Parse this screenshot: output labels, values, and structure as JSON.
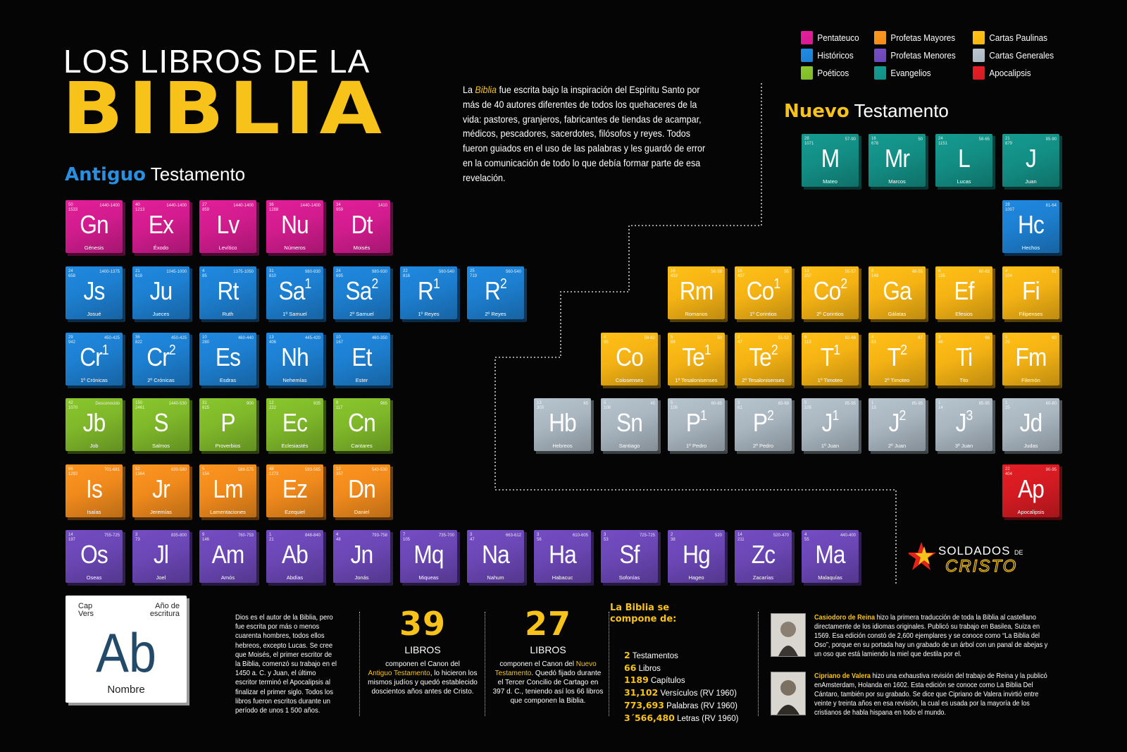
{
  "title": {
    "line1": "LOS LIBROS DE LA",
    "line2": "BIBLIA"
  },
  "old_testament": {
    "bold": "Antiguo",
    "rest": " Testamento"
  },
  "new_testament": {
    "bold": "Nuevo",
    "rest": " Testamento"
  },
  "intro": {
    "prefix": "La ",
    "highlight": "Biblia",
    "body": " fue escrita bajo la inspiración del Espíritu Santo por más de 40 autores diferentes de todos los quehaceres de la vida: pastores, granjeros, fabricantes de tiendas de acampar, médicos, pescadores, sacerdotes, filósofos y reyes.  Todos fueron guiados en el uso de las palabras y les guardó de error en la comunicación de todo lo que debía formar parte de esa revelación."
  },
  "legend": [
    {
      "label": "Pentateuco",
      "color": "#d21c8e"
    },
    {
      "label": "Profetas Mayores",
      "color": "#f08a1c"
    },
    {
      "label": "Cartas Paulinas",
      "color": "#f5b314"
    },
    {
      "label": "Históricos",
      "color": "#1d7fd0"
    },
    {
      "label": "Profetas Menores",
      "color": "#6b47b5"
    },
    {
      "label": "Cartas Generales",
      "color": "#a9b6c0"
    },
    {
      "label": "Poéticos",
      "color": "#7fb82a"
    },
    {
      "label": "Evangelios",
      "color": "#138f85"
    },
    {
      "label": "Apocalipsis",
      "color": "#d41b22"
    }
  ],
  "colors": {
    "pentateuco": "#d21c8e",
    "historicos": "#1d7fd0",
    "poeticos": "#7fb82a",
    "mayores": "#f08a1c",
    "menores": "#6b47b5",
    "evangelios": "#138f85",
    "paulinas": "#f5b314",
    "generales": "#a9b6c0",
    "apocalipsis": "#d41b22"
  },
  "books": [
    {
      "sym": "Gn",
      "sup": "",
      "name": "Génesis",
      "cap": "50",
      "vers": "1533",
      "year": "1440-1400",
      "cat": "pentateuco"
    },
    {
      "sym": "Ex",
      "sup": "",
      "name": "Éxodo",
      "cap": "40",
      "vers": "1213",
      "year": "1440-1400",
      "cat": "pentateuco"
    },
    {
      "sym": "Lv",
      "sup": "",
      "name": "Levítico",
      "cap": "27",
      "vers": "859",
      "year": "1440-1400",
      "cat": "pentateuco"
    },
    {
      "sym": "Nu",
      "sup": "",
      "name": "Números",
      "cap": "36",
      "vers": "1288",
      "year": "1440-1400",
      "cat": "pentateuco"
    },
    {
      "sym": "Dt",
      "sup": "",
      "name": "Moisés",
      "cap": "34",
      "vers": "959",
      "year": "1410",
      "cat": "pentateuco"
    },
    {
      "sym": "Js",
      "sup": "",
      "name": "Josué",
      "cap": "24",
      "vers": "658",
      "year": "1400-1375",
      "cat": "historicos"
    },
    {
      "sym": "Ju",
      "sup": "",
      "name": "Jueces",
      "cap": "21",
      "vers": "618",
      "year": "1045-1000",
      "cat": "historicos"
    },
    {
      "sym": "Rt",
      "sup": "",
      "name": "Ruth",
      "cap": "4",
      "vers": "85",
      "year": "1375-1050",
      "cat": "historicos"
    },
    {
      "sym": "Sa",
      "sup": "1",
      "name": "1º Samuel",
      "cap": "31",
      "vers": "810",
      "year": "980-930",
      "cat": "historicos"
    },
    {
      "sym": "Sa",
      "sup": "2",
      "name": "2º Samuel",
      "cap": "24",
      "vers": "695",
      "year": "980-930",
      "cat": "historicos"
    },
    {
      "sym": "R",
      "sup": "1",
      "name": "1º Reyes",
      "cap": "22",
      "vers": "816",
      "year": "560-540",
      "cat": "historicos"
    },
    {
      "sym": "R",
      "sup": "2",
      "name": "2º Reyes",
      "cap": "25",
      "vers": "719",
      "year": "560-540",
      "cat": "historicos"
    },
    {
      "sym": "Cr",
      "sup": "1",
      "name": "1º Crónicas",
      "cap": "29",
      "vers": "942",
      "year": "450-425",
      "cat": "historicos"
    },
    {
      "sym": "Cr",
      "sup": "2",
      "name": "2º Crónicas",
      "cap": "36",
      "vers": "822",
      "year": "450-425",
      "cat": "historicos"
    },
    {
      "sym": "Es",
      "sup": "",
      "name": "Esdras",
      "cap": "10",
      "vers": "280",
      "year": "460-440",
      "cat": "historicos"
    },
    {
      "sym": "Nh",
      "sup": "",
      "name": "Nehemías",
      "cap": "13",
      "vers": "406",
      "year": "445-420",
      "cat": "historicos"
    },
    {
      "sym": "Et",
      "sup": "",
      "name": "Ester",
      "cap": "10",
      "vers": "167",
      "year": "460-350",
      "cat": "historicos"
    },
    {
      "sym": "Jb",
      "sup": "",
      "name": "Job",
      "cap": "42",
      "vers": "1070",
      "year": "Desconocido",
      "cat": "poeticos"
    },
    {
      "sym": "S",
      "sup": "",
      "name": "Salmos",
      "cap": "150",
      "vers": "2461",
      "year": "1440-530",
      "cat": "poeticos"
    },
    {
      "sym": "P",
      "sup": "",
      "name": "Proverbios",
      "cap": "31",
      "vers": "915",
      "year": "900",
      "cat": "poeticos"
    },
    {
      "sym": "Ec",
      "sup": "",
      "name": "Eclesiastés",
      "cap": "12",
      "vers": "222",
      "year": "935",
      "cat": "poeticos"
    },
    {
      "sym": "Cn",
      "sup": "",
      "name": "Cantares",
      "cap": "8",
      "vers": "117",
      "year": "965",
      "cat": "poeticos"
    },
    {
      "sym": "Is",
      "sup": "",
      "name": "Isaías",
      "cap": "66",
      "vers": "1292",
      "year": "701-681",
      "cat": "mayores"
    },
    {
      "sym": "Jr",
      "sup": "",
      "name": "Jeremías",
      "cap": "52",
      "vers": "1364",
      "year": "630-580",
      "cat": "mayores"
    },
    {
      "sym": "Lm",
      "sup": "",
      "name": "Lamentaciones",
      "cap": "5",
      "vers": "154",
      "year": "586-575",
      "cat": "mayores"
    },
    {
      "sym": "Ez",
      "sup": "",
      "name": "Ezequiel",
      "cap": "48",
      "vers": "1273",
      "year": "593-565",
      "cat": "mayores"
    },
    {
      "sym": "Dn",
      "sup": "",
      "name": "Daniel",
      "cap": "12",
      "vers": "357",
      "year": "540-530",
      "cat": "mayores"
    },
    {
      "sym": "Os",
      "sup": "",
      "name": "Oseas",
      "cap": "14",
      "vers": "197",
      "year": "755-725",
      "cat": "menores"
    },
    {
      "sym": "Jl",
      "sup": "",
      "name": "Joel",
      "cap": "3",
      "vers": "73",
      "year": "835-800",
      "cat": "menores"
    },
    {
      "sym": "Am",
      "sup": "",
      "name": "Amós",
      "cap": "9",
      "vers": "146",
      "year": "760-753",
      "cat": "menores"
    },
    {
      "sym": "Ab",
      "sup": "",
      "name": "Abdías",
      "cap": "1",
      "vers": "21",
      "year": "848-840",
      "cat": "menores"
    },
    {
      "sym": "Jn",
      "sup": "",
      "name": "Jonás",
      "cap": "4",
      "vers": "48",
      "year": "793-758",
      "cat": "menores"
    },
    {
      "sym": "Mq",
      "sup": "",
      "name": "Miqueas",
      "cap": "7",
      "vers": "105",
      "year": "735-700",
      "cat": "menores"
    },
    {
      "sym": "Na",
      "sup": "",
      "name": "Nahum",
      "cap": "3",
      "vers": "47",
      "year": "663-612",
      "cat": "menores"
    },
    {
      "sym": "Ha",
      "sup": "",
      "name": "Habacuc",
      "cap": "3",
      "vers": "56",
      "year": "610-605",
      "cat": "menores"
    },
    {
      "sym": "Sf",
      "sup": "",
      "name": "Sofonías",
      "cap": "3",
      "vers": "53",
      "year": "725-725",
      "cat": "menores"
    },
    {
      "sym": "Hg",
      "sup": "",
      "name": "Hageo",
      "cap": "2",
      "vers": "38",
      "year": "520",
      "cat": "menores"
    },
    {
      "sym": "Zc",
      "sup": "",
      "name": "Zacarías",
      "cap": "14",
      "vers": "211",
      "year": "520-470",
      "cat": "menores"
    },
    {
      "sym": "Ma",
      "sup": "",
      "name": "Malaquías",
      "cap": "4",
      "vers": "55",
      "year": "440-400",
      "cat": "menores"
    },
    {
      "sym": "M",
      "sup": "",
      "name": "Mateo",
      "cap": "28",
      "vers": "1071",
      "year": "57-90",
      "cat": "evangelios"
    },
    {
      "sym": "Mr",
      "sup": "",
      "name": "Marcos",
      "cap": "16",
      "vers": "678",
      "year": "50",
      "cat": "evangelios"
    },
    {
      "sym": "L",
      "sup": "",
      "name": "Lucas",
      "cap": "24",
      "vers": "1151",
      "year": "58-65",
      "cat": "evangelios"
    },
    {
      "sym": "J",
      "sup": "",
      "name": "Juan",
      "cap": "21",
      "vers": "879",
      "year": "85-90",
      "cat": "evangelios"
    },
    {
      "sym": "Hc",
      "sup": "",
      "name": "Hechos",
      "cap": "28",
      "vers": "1007",
      "year": "61-64",
      "cat": "historicos"
    },
    {
      "sym": "Rm",
      "sup": "",
      "name": "Romanos",
      "cap": "16",
      "vers": "433",
      "year": "56-58",
      "cat": "paulinas"
    },
    {
      "sym": "Co",
      "sup": "1",
      "name": "1º Corintios",
      "cap": "16",
      "vers": "437",
      "year": "55",
      "cat": "paulinas"
    },
    {
      "sym": "Co",
      "sup": "2",
      "name": "2º Corintios",
      "cap": "13",
      "vers": "257",
      "year": "55-57",
      "cat": "paulinas"
    },
    {
      "sym": "Ga",
      "sup": "",
      "name": "Gálatas",
      "cap": "6",
      "vers": "149",
      "year": "48-55",
      "cat": "paulinas"
    },
    {
      "sym": "Ef",
      "sup": "",
      "name": "Efesios",
      "cap": "6",
      "vers": "155",
      "year": "60-63",
      "cat": "paulinas"
    },
    {
      "sym": "Fi",
      "sup": "",
      "name": "Filipenses",
      "cap": "4",
      "vers": "104",
      "year": "61",
      "cat": "paulinas"
    },
    {
      "sym": "Co",
      "sup": "",
      "name": "Colosenses",
      "cap": "4",
      "vers": "95",
      "year": "58-62",
      "cat": "paulinas"
    },
    {
      "sym": "Te",
      "sup": "1",
      "name": "1º Tesalonisenses",
      "cap": "5",
      "vers": "89",
      "year": "50",
      "cat": "paulinas"
    },
    {
      "sym": "Te",
      "sup": "2",
      "name": "2º Tesalonisenses",
      "cap": "3",
      "vers": "47",
      "year": "51-52",
      "cat": "paulinas"
    },
    {
      "sym": "T",
      "sup": "1",
      "name": "1º Timoteo",
      "cap": "6",
      "vers": "113",
      "year": "62-66",
      "cat": "paulinas"
    },
    {
      "sym": "T",
      "sup": "2",
      "name": "2º Timoteo",
      "cap": "4",
      "vers": "83",
      "year": "67",
      "cat": "paulinas"
    },
    {
      "sym": "Ti",
      "sup": "",
      "name": "Tito",
      "cap": "3",
      "vers": "46",
      "year": "66",
      "cat": "paulinas"
    },
    {
      "sym": "Fm",
      "sup": "",
      "name": "Filemón",
      "cap": "1",
      "vers": "25",
      "year": "60",
      "cat": "paulinas"
    },
    {
      "sym": "Hb",
      "sup": "",
      "name": "Hebreos",
      "cap": "13",
      "vers": "303",
      "year": "65",
      "cat": "generales"
    },
    {
      "sym": "Sn",
      "sup": "",
      "name": "Santiago",
      "cap": "5",
      "vers": "108",
      "year": "45",
      "cat": "generales"
    },
    {
      "sym": "P",
      "sup": "1",
      "name": "1º Pedro",
      "cap": "5",
      "vers": "105",
      "year": "60-65",
      "cat": "generales"
    },
    {
      "sym": "P",
      "sup": "2",
      "name": "2º Pedro",
      "cap": "3",
      "vers": "61",
      "year": "65-68",
      "cat": "generales"
    },
    {
      "sym": "J",
      "sup": "1",
      "name": "1º Juan",
      "cap": "5",
      "vers": "105",
      "year": "85-95",
      "cat": "generales"
    },
    {
      "sym": "J",
      "sup": "2",
      "name": "2º Juan",
      "cap": "1",
      "vers": "13",
      "year": "85-95",
      "cat": "generales"
    },
    {
      "sym": "J",
      "sup": "3",
      "name": "3º Juan",
      "cap": "1",
      "vers": "14",
      "year": "85-95",
      "cat": "generales"
    },
    {
      "sym": "Jd",
      "sup": "",
      "name": "Judas",
      "cap": "1",
      "vers": "25",
      "year": "60-80",
      "cat": "generales"
    },
    {
      "sym": "Ap",
      "sup": "",
      "name": "Apocalipsis",
      "cap": "22",
      "vers": "404",
      "year": "90-95",
      "cat": "apocalipsis"
    }
  ],
  "key": {
    "cap": "Cap",
    "vers": "Vers",
    "year1": "Año de",
    "year2": "escritura",
    "sym": "Ab",
    "name": "Nombre"
  },
  "author_text": "Dios es el autor de la Biblia, pero fue escrita por más o menos cuarenta hombres, todos ellos hebreos, excepto Lucas. Se cree que Moisés, el primer escritor de la Biblia, comenzó su trabajo en el 1450 a. C. y Juan, el último escritor terminó el Apocalipsis al finalizar el primer siglo. Todos los libros fueron escritos durante un período de unos 1 500 años.",
  "ot_count": {
    "num": "39",
    "label": "LIBROS",
    "t1": "componen el Canon del",
    "t2": "Antiguo Testamento",
    "t3": ", lo hicieron los mismos judíos y quedó establecido doscientos años antes de Cristo."
  },
  "nt_count": {
    "num": "27",
    "label": "LIBROS",
    "t1": "componen el Canon del ",
    "t2": "Nuevo Testamento",
    "t3": ". Quedó fijado durante el Tercer Concilio de Cartago en 397 d. C., teniendo así los 66 libros que componen la Biblia."
  },
  "stats": {
    "title1": "La Biblia se",
    "title2": "compone de:",
    "rows": [
      {
        "num": "2",
        "label": " Testamentos"
      },
      {
        "num": "66",
        "label": " Libros"
      },
      {
        "num": "1189",
        "label": " Capítulos"
      },
      {
        "num": "31,102",
        "label": " Versículos (RV 1960)"
      },
      {
        "num": "773,693",
        "label": " Palabras (RV 1960)"
      },
      {
        "num": "3´566,480",
        "label": " Letras (RV 1960)"
      }
    ]
  },
  "bios": [
    {
      "name": "Casiodoro de Reina",
      "text": " hizo la primera traducción de toda la Biblia al castellano directamente de los idiomas originales. Publicó su trabajo en Basilea, Suiza en 1569. Esa edición constó de 2,600 ejemplares y se conoce como “La Biblia del Oso”, porque en su portada hay un grabado de un árbol con un panal de abejas y un oso que está lamiendo la miel que destila por el."
    },
    {
      "name": "Cipriano de Valera",
      "text": " hizo una exhaustiva revisión del trabajo de Reina y la publicó enAmsterdam, Holanda en 1602. Esta edición se conoce como La Biblia Del Cántaro, también por su grabado. Se dice que Cipriano de Valera invirtió entre veinte y treinta años en esa revisión, la cual es usada por la mayoría de los cristianos de habla hispana en todo el mundo."
    }
  ],
  "logo": {
    "line1": "SOLDADOS",
    "line2": "DE",
    "line3": "CRISTO"
  }
}
